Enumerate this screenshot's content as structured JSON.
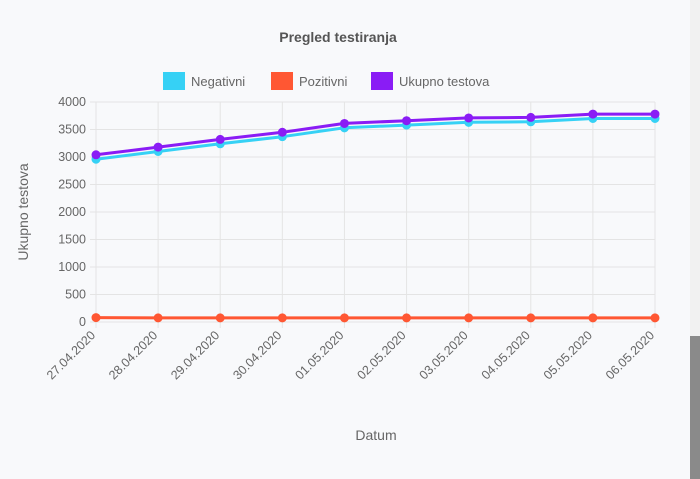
{
  "chart_data": {
    "type": "line",
    "title": "Pregled testiranja",
    "xlabel": "Datum",
    "ylabel": "Ukupno testova",
    "ylim": [
      0,
      4000
    ],
    "yticks": [
      "4000",
      "3500",
      "3000",
      "2500",
      "2000",
      "1500",
      "1000",
      "500",
      "0"
    ],
    "categories": [
      "27.04.2020",
      "28.04.2020",
      "29.04.2020",
      "30.04.2020",
      "01.05.2020",
      "02.05.2020",
      "03.05.2020",
      "04.05.2020",
      "05.05.2020",
      "06.05.2020"
    ],
    "legend_position": "top",
    "grid": true,
    "series": [
      {
        "name": "Negativni",
        "color": "#36d1f5",
        "values": [
          2960,
          3100,
          3240,
          3370,
          3530,
          3580,
          3630,
          3640,
          3700,
          3700
        ]
      },
      {
        "name": "Pozitivni",
        "color": "#ff5733",
        "values": [
          80,
          75,
          75,
          75,
          75,
          75,
          75,
          75,
          75,
          75
        ]
      },
      {
        "name": "Ukupno testova",
        "color": "#8a1cf5",
        "values": [
          3040,
          3180,
          3320,
          3450,
          3610,
          3660,
          3710,
          3720,
          3780,
          3780
        ]
      }
    ]
  }
}
